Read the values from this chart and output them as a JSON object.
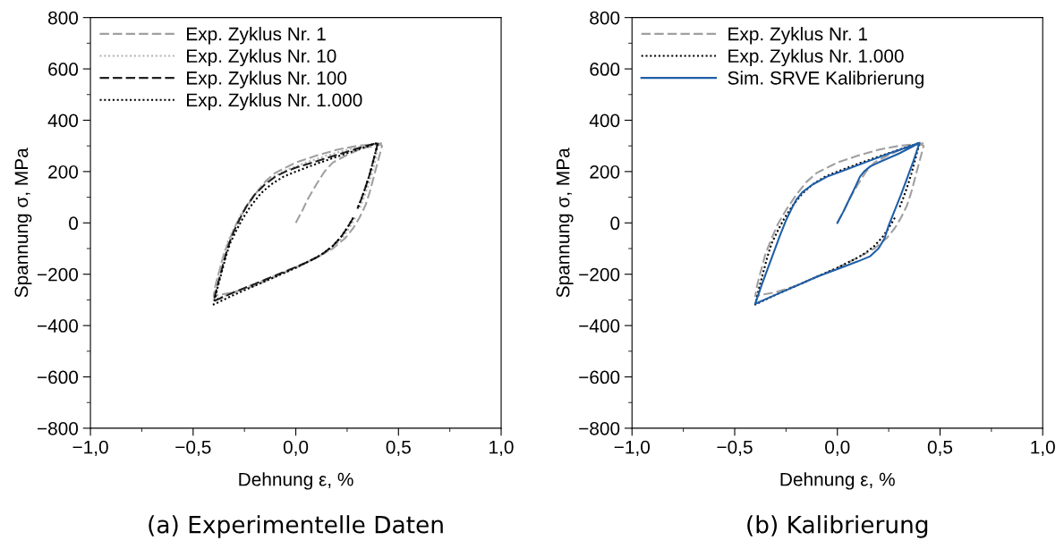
{
  "chart_data": [
    {
      "type": "line",
      "xlabel": "Dehnung ε, %",
      "ylabel": "Spannung σ, MPa",
      "annotations": [
        "(a) Experimentelle Daten"
      ],
      "xlim": [
        -1,
        1
      ],
      "ylim": [
        -800,
        800
      ],
      "xticks": [
        {
          "value": -1,
          "label": "−1,0"
        },
        {
          "value": -0.5,
          "label": "−0,5"
        },
        {
          "value": 0,
          "label": "0,0"
        },
        {
          "value": 0.5,
          "label": "0,5"
        },
        {
          "value": 1,
          "label": "1,0"
        }
      ],
      "yticks": [
        {
          "value": -800,
          "label": "−800"
        },
        {
          "value": -600,
          "label": "−600"
        },
        {
          "value": -400,
          "label": "−400"
        },
        {
          "value": -200,
          "label": "−200"
        },
        0,
        200,
        400,
        600,
        800
      ],
      "legend": "top left",
      "grid": false,
      "marker": "none",
      "series": [
        {
          "name": "Exp. Zyklus Nr. 1",
          "color": "#a0a0a0",
          "line_style": "dashed",
          "x": [
            0,
            0.03,
            0.06,
            0.1,
            0.14,
            0.18,
            0.25,
            0.32,
            0.41,
            0.42,
            0.4,
            0.38,
            0.36,
            0.34,
            0.31,
            0.28,
            0.24,
            0.18,
            0.1,
            0,
            -0.1,
            -0.2,
            -0.3,
            -0.4,
            -0.39,
            -0.37,
            -0.35,
            -0.32,
            -0.29,
            -0.25,
            -0.2,
            -0.15,
            -0.1,
            0,
            0.1,
            0.2,
            0.3,
            0.42
          ],
          "values": [
            0,
            45,
            95,
            150,
            200,
            235,
            265,
            290,
            305,
            300,
            240,
            180,
            120,
            70,
            20,
            -20,
            -60,
            -100,
            -135,
            -175,
            -210,
            -245,
            -270,
            -285,
            -240,
            -180,
            -120,
            -60,
            -5,
            50,
            110,
            160,
            195,
            235,
            262,
            285,
            300,
            310
          ]
        },
        {
          "name": "Exp. Zyklus Nr. 10",
          "color": "#b4b4b4",
          "line_style": "dotted",
          "x": [
            0.29,
            0.26,
            0.23,
            0.19,
            0.15,
            0.1,
            0.05,
            0,
            -0.1,
            -0.2,
            -0.3,
            -0.4,
            -0.39,
            -0.37,
            -0.35,
            -0.33,
            -0.3,
            -0.27,
            -0.23,
            -0.18,
            -0.12,
            -0.05,
            0.05,
            0.15,
            0.25,
            0.4,
            0.39,
            0.37,
            0.35,
            0.33,
            0.31
          ],
          "values": [
            20,
            -20,
            -55,
            -90,
            -115,
            -135,
            -155,
            -172,
            -205,
            -238,
            -270,
            -300,
            -240,
            -180,
            -120,
            -70,
            -20,
            30,
            80,
            130,
            175,
            205,
            235,
            262,
            285,
            312,
            250,
            190,
            140,
            95,
            55
          ]
        },
        {
          "name": "Exp. Zyklus Nr. 100",
          "color": "#202020",
          "line_style": "dashed",
          "x": [
            0.28,
            0.25,
            0.22,
            0.18,
            0.14,
            0.1,
            0.05,
            0,
            -0.1,
            -0.2,
            -0.3,
            -0.4,
            -0.38,
            -0.36,
            -0.34,
            -0.32,
            -0.3,
            -0.27,
            -0.24,
            -0.2,
            -0.15,
            -0.1,
            -0.05,
            0,
            0.1,
            0.2,
            0.3,
            0.4,
            0.38,
            0.36,
            0.34,
            0.32,
            0.3
          ],
          "values": [
            20,
            -20,
            -55,
            -90,
            -115,
            -135,
            -155,
            -172,
            -205,
            -238,
            -270,
            -305,
            -240,
            -180,
            -120,
            -70,
            -30,
            20,
            65,
            110,
            150,
            180,
            200,
            215,
            240,
            265,
            290,
            312,
            250,
            190,
            140,
            95,
            55
          ]
        },
        {
          "name": "Exp. Zyklus Nr. 1.000",
          "color": "#000000",
          "line_style": "dotted",
          "x": [
            0.28,
            0.25,
            0.22,
            0.18,
            0.14,
            0.1,
            0.05,
            0,
            -0.1,
            -0.2,
            -0.3,
            -0.4,
            -0.38,
            -0.36,
            -0.34,
            -0.32,
            -0.29,
            -0.26,
            -0.22,
            -0.17,
            -0.12,
            -0.06,
            0,
            0.1,
            0.2,
            0.3,
            0.4,
            0.38,
            0.36,
            0.34,
            0.32,
            0.3
          ],
          "values": [
            20,
            -20,
            -55,
            -90,
            -115,
            -135,
            -155,
            -175,
            -210,
            -245,
            -280,
            -318,
            -250,
            -190,
            -130,
            -80,
            -30,
            15,
            65,
            115,
            150,
            180,
            200,
            230,
            258,
            285,
            312,
            250,
            190,
            140,
            95,
            55
          ]
        }
      ]
    },
    {
      "type": "line",
      "xlabel": "Dehnung ε, %",
      "ylabel": "Spannung σ, MPa",
      "annotations": [
        "(b) Kalibrierung"
      ],
      "xlim": [
        -1,
        1
      ],
      "ylim": [
        -800,
        800
      ],
      "xticks": [
        {
          "value": -1,
          "label": "−1,0"
        },
        {
          "value": -0.5,
          "label": "−0,5"
        },
        {
          "value": 0,
          "label": "0,0"
        },
        {
          "value": 0.5,
          "label": "0,5"
        },
        {
          "value": 1,
          "label": "1,0"
        }
      ],
      "yticks": [
        {
          "value": -800,
          "label": "−800"
        },
        {
          "value": -600,
          "label": "−600"
        },
        {
          "value": -400,
          "label": "−400"
        },
        {
          "value": -200,
          "label": "−200"
        },
        0,
        200,
        400,
        600,
        800
      ],
      "legend": "top left",
      "grid": false,
      "marker": "none",
      "series": [
        {
          "name": "Exp. Zyklus Nr. 1",
          "color": "#a0a0a0",
          "line_style": "dashed",
          "x": [
            0,
            0.03,
            0.06,
            0.1,
            0.14,
            0.18,
            0.25,
            0.32,
            0.41,
            0.42,
            0.4,
            0.38,
            0.36,
            0.34,
            0.31,
            0.28,
            0.24,
            0.18,
            0.1,
            0,
            -0.1,
            -0.2,
            -0.3,
            -0.4,
            -0.39,
            -0.37,
            -0.35,
            -0.32,
            -0.29,
            -0.25,
            -0.2,
            -0.15,
            -0.1,
            0,
            0.1,
            0.2,
            0.3,
            0.42
          ],
          "values": [
            0,
            45,
            95,
            150,
            200,
            235,
            265,
            290,
            305,
            300,
            240,
            180,
            120,
            70,
            20,
            -20,
            -60,
            -100,
            -135,
            -175,
            -210,
            -245,
            -270,
            -285,
            -240,
            -180,
            -120,
            -60,
            -5,
            50,
            110,
            160,
            195,
            235,
            262,
            285,
            300,
            310
          ]
        },
        {
          "name": "Exp. Zyklus Nr. 1.000",
          "color": "#000000",
          "line_style": "dotted",
          "x": [
            0.28,
            0.25,
            0.22,
            0.18,
            0.14,
            0.1,
            0.05,
            0,
            -0.1,
            -0.2,
            -0.3,
            -0.4,
            -0.38,
            -0.36,
            -0.34,
            -0.32,
            -0.29,
            -0.26,
            -0.22,
            -0.17,
            -0.12,
            -0.06,
            0,
            0.1,
            0.2,
            0.3,
            0.4,
            0.38,
            0.36,
            0.34,
            0.32,
            0.3
          ],
          "values": [
            20,
            -20,
            -55,
            -90,
            -115,
            -135,
            -155,
            -175,
            -210,
            -245,
            -280,
            -318,
            -250,
            -190,
            -130,
            -80,
            -30,
            15,
            65,
            115,
            150,
            180,
            200,
            230,
            258,
            285,
            312,
            250,
            190,
            140,
            95,
            55
          ]
        },
        {
          "name": "Sim. SRVE Kalibrierung",
          "color": "#1f5fa8",
          "line_style": "solid",
          "x": [
            0,
            0.03,
            0.06,
            0.09,
            0.11,
            0.13,
            0.16,
            0.2,
            0.3,
            0.4,
            0.37,
            0.34,
            0.31,
            0.28,
            0.25,
            0.23,
            0.2,
            0.16,
            0.1,
            0,
            -0.1,
            -0.2,
            -0.3,
            -0.4,
            -0.37,
            -0.34,
            -0.31,
            -0.28,
            -0.25,
            -0.22,
            -0.2,
            -0.17,
            -0.12,
            -0.05,
            0.05,
            0.15,
            0.25,
            0.4
          ],
          "values": [
            0,
            45,
            95,
            145,
            180,
            200,
            220,
            235,
            270,
            312,
            240,
            175,
            110,
            50,
            -10,
            -60,
            -100,
            -130,
            -150,
            -180,
            -210,
            -245,
            -280,
            -315,
            -245,
            -180,
            -115,
            -50,
            10,
            60,
            90,
            120,
            150,
            180,
            210,
            240,
            270,
            312
          ]
        }
      ]
    }
  ]
}
